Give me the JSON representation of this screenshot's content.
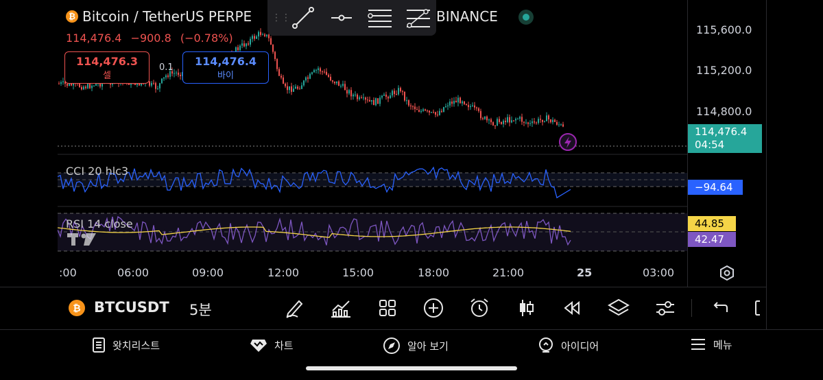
{
  "legend": {
    "symbol_title": "Bitcoin / TetherUS PERPE",
    "exchange": "BINANCE",
    "last_price": "114,476.4",
    "change": "−900.8",
    "change_pct": "(−0.78%)"
  },
  "trade": {
    "sell_price": "114,476.3",
    "sell_label": "셀",
    "buy_price": "114,476.4",
    "buy_label": "바이",
    "spread": "0.1"
  },
  "price_axis": {
    "labels": [
      "115,600.0",
      "115,200.0",
      "114,800.0"
    ],
    "current_price": "114,476.4",
    "countdown": "04:54"
  },
  "indicators": {
    "cci_label": "CCI 20 hlc3",
    "cci_value": "−94.64",
    "rsi_label": "RSI 14 close",
    "rsi_ma_value": "44.85",
    "rsi_value": "42.47"
  },
  "time_axis": {
    "labels": [
      ":00",
      "06:00",
      "09:00",
      "12:00",
      "15:00",
      "18:00",
      "21:00",
      "25",
      "03:00"
    ]
  },
  "symbol_bar": {
    "symbol": "BTCUSDT",
    "interval": "5분"
  },
  "bottom_nav": {
    "watchlist": "왓치리스트",
    "chart": "차트",
    "explore": "알아 보기",
    "ideas": "아이디어",
    "menu": "메뉴"
  },
  "colors": {
    "up": "#26a69a",
    "down": "#ef5350",
    "cci": "#2962ff",
    "rsi": "#7e57c2",
    "rsi_ma": "#f5d547"
  }
}
